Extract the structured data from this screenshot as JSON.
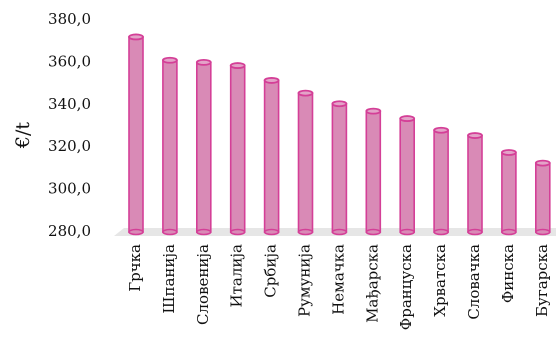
{
  "chart_data": {
    "type": "bar",
    "title": "",
    "xlabel": "",
    "ylabel": "€/t",
    "ylim": [
      280,
      380
    ],
    "yticks": [
      "280,0",
      "300,0",
      "320,0",
      "340,0",
      "360,0",
      "380,0"
    ],
    "grid": false,
    "categories": [
      "Грчка",
      "Шпанија",
      "Словенија",
      "Италија",
      "Србија",
      "Румунија",
      "Немачка",
      "Мађарска",
      "Француска",
      "Хрватска",
      "Словачка",
      "Финска",
      "Бугарска"
    ],
    "values": [
      372,
      361,
      360,
      358.5,
      351.5,
      345.5,
      340.5,
      337,
      333.5,
      328,
      325.5,
      317.5,
      312.5
    ],
    "colors": {
      "bar_fill": "#d98ab6",
      "bar_edge": "#d43f97",
      "floor": "#e6e6e6"
    }
  }
}
